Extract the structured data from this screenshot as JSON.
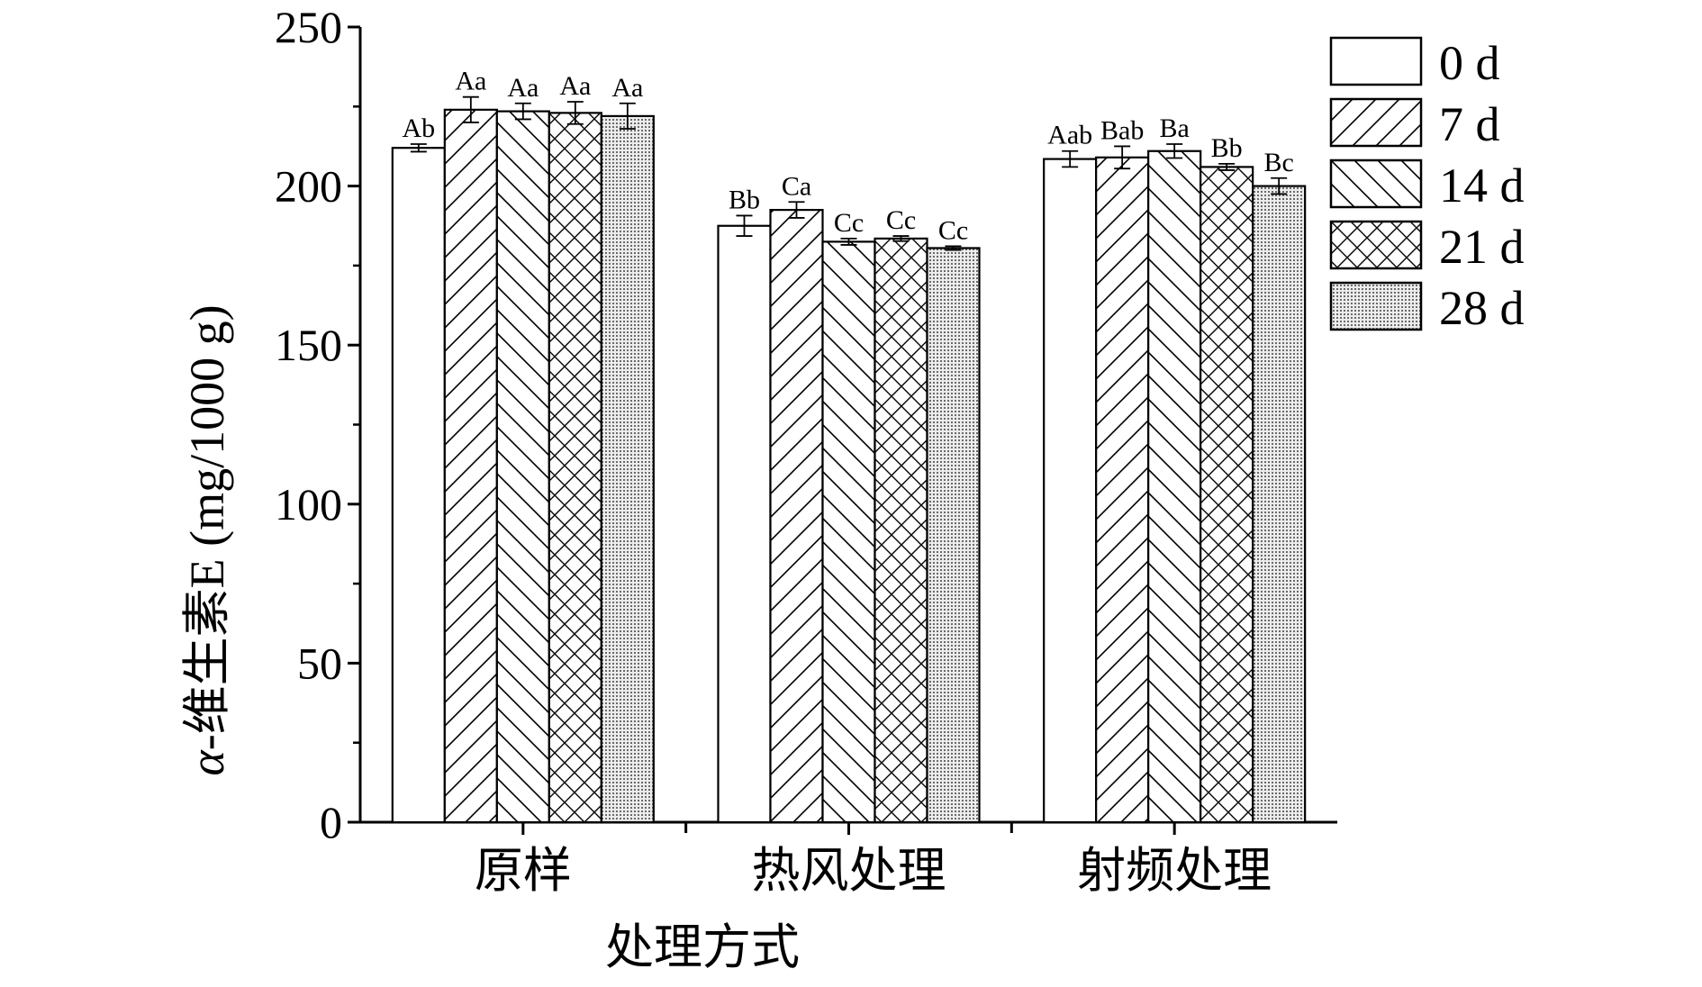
{
  "chart_data": {
    "type": "bar",
    "xlabel": "处理方式",
    "ylabel_prefix": "α",
    "ylabel_rest": "-维生素E (mg/1000 g)",
    "ylim": [
      0,
      250
    ],
    "yticks": [
      "0",
      "50",
      "100",
      "150",
      "200",
      "250"
    ],
    "categories": [
      "原样",
      "热风处理",
      "射频处理"
    ],
    "series": [
      {
        "name": "0 d",
        "pattern": "none",
        "values": [
          212,
          187.5,
          208.5
        ],
        "errors": [
          1.2,
          3.2,
          2.5
        ],
        "labels": [
          "Ab",
          "Bb",
          "Aab"
        ]
      },
      {
        "name": "7 d",
        "pattern": "diag-up",
        "values": [
          224,
          192.5,
          209
        ],
        "errors": [
          4,
          2.5,
          3.5
        ],
        "labels": [
          "Aa",
          "Ca",
          "Bab"
        ]
      },
      {
        "name": "14 d",
        "pattern": "diag-down",
        "values": [
          223.5,
          182.5,
          211
        ],
        "errors": [
          2.5,
          1,
          2.2
        ],
        "labels": [
          "Aa",
          "Cc",
          "Ba"
        ]
      },
      {
        "name": "21 d",
        "pattern": "cross",
        "values": [
          223,
          183.5,
          206
        ],
        "errors": [
          3.5,
          0.8,
          1
        ],
        "labels": [
          "Aa",
          "Cc",
          "Bb"
        ]
      },
      {
        "name": "28 d",
        "pattern": "dots",
        "values": [
          222,
          180.5,
          200
        ],
        "errors": [
          4,
          0.6,
          2.5
        ],
        "labels": [
          "Aa",
          "Cc",
          "Bc"
        ]
      }
    ],
    "legend_position": "top-right",
    "grid": false
  }
}
